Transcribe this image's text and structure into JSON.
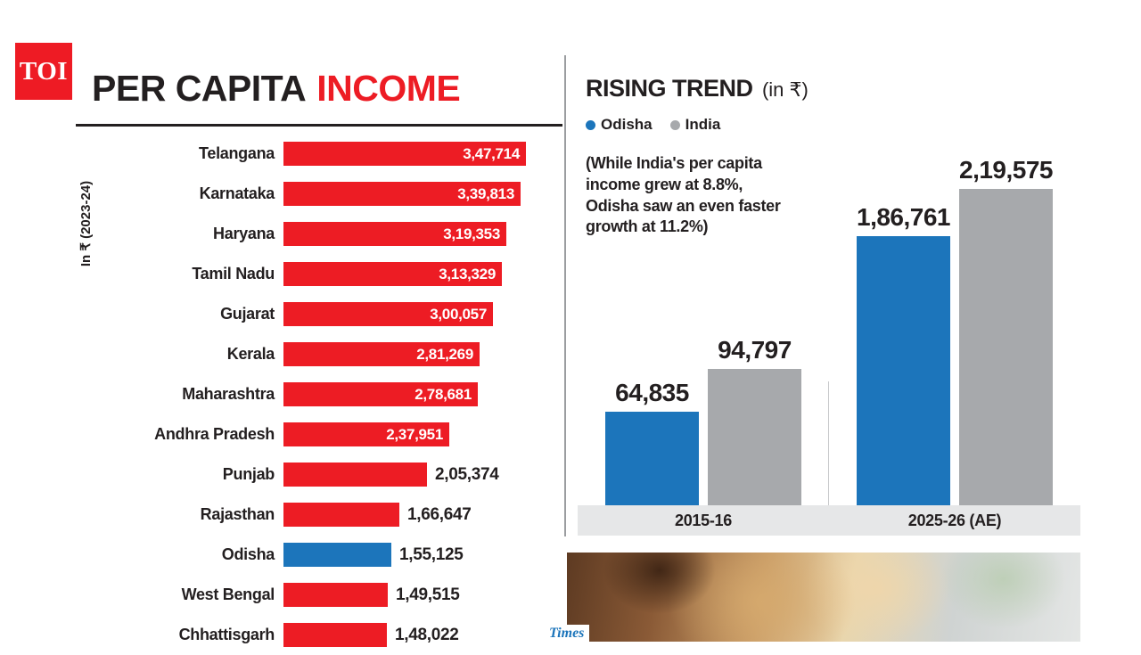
{
  "logo": {
    "text": "TOI",
    "bg": "#ee1b24"
  },
  "left_panel": {
    "title_black": "PER CAPITA",
    "title_red": "INCOME",
    "axis_label": "In ₹ (2023-24)"
  },
  "right_panel": {
    "title": "RISING TREND",
    "title_suffix": "(in ₹)",
    "legend": [
      {
        "label": "Odisha",
        "color": "#1c75bb"
      },
      {
        "label": "India",
        "color": "#a7a9ac"
      }
    ],
    "note": "(While India's per capita income grew at 8.8%, Odisha saw an even faster growth at 11.2%)"
  },
  "watermark": "Times",
  "chart_data": [
    {
      "type": "bar",
      "orientation": "horizontal",
      "title": "PER CAPITA INCOME",
      "unit_label": "In ₹ (2023-24)",
      "categories": [
        "Telangana",
        "Karnataka",
        "Haryana",
        "Tamil Nadu",
        "Gujarat",
        "Kerala",
        "Maharashtra",
        "Andhra Pradesh",
        "Punjab",
        "Rajasthan",
        "Odisha",
        "West Bengal",
        "Chhattisgarh"
      ],
      "values": [
        347714,
        339813,
        319353,
        313329,
        300057,
        281269,
        278681,
        237951,
        205374,
        166647,
        155125,
        149515,
        148022
      ],
      "labels": [
        "3,47,714",
        "3,39,813",
        "3,19,353",
        "3,13,329",
        "3,00,057",
        "2,81,269",
        "2,78,681",
        "2,37,951",
        "2,05,374",
        "1,66,647",
        "1,55,125",
        "1,49,515",
        "1,48,022"
      ],
      "bar_color": "#ed1c24",
      "highlight_category": "Odisha",
      "highlight_color": "#1c75bb",
      "inside_threshold": 220000,
      "xlim": [
        0,
        347714
      ],
      "grid": false
    },
    {
      "type": "bar",
      "orientation": "vertical",
      "title": "RISING TREND (in ₹)",
      "categories": [
        "2015-16",
        "2025-26 (AE)"
      ],
      "series": [
        {
          "name": "Odisha",
          "color": "#1c75bb",
          "values": [
            64835,
            186761
          ],
          "labels": [
            "64,835",
            "1,86,761"
          ]
        },
        {
          "name": "India",
          "color": "#a7a9ac",
          "values": [
            94797,
            219575
          ],
          "labels": [
            "94,797",
            "2,19,575"
          ]
        }
      ],
      "ylim": [
        0,
        219575
      ],
      "legend_position": "top-left",
      "grid": false
    }
  ]
}
